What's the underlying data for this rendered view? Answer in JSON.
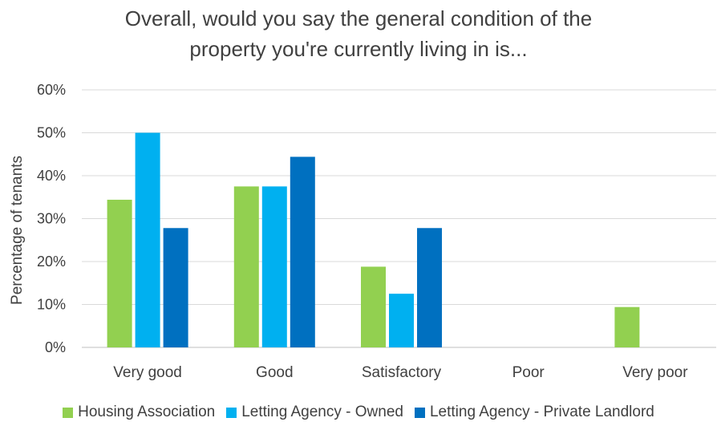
{
  "chart_data": {
    "type": "bar",
    "title_lines": [
      "Overall, would you say the general condition of the",
      "property you're currently living in is..."
    ],
    "ylabel": "Percentage of tenants",
    "xlabel": "",
    "ylim": [
      0,
      60
    ],
    "yticks": [
      "0%",
      "10%",
      "20%",
      "30%",
      "40%",
      "50%",
      "60%"
    ],
    "yticks_values": [
      0,
      10,
      20,
      30,
      40,
      50,
      60
    ],
    "grid": true,
    "legend_position": "bottom",
    "categories": [
      "Very good",
      "Good",
      "Satisfactory",
      "Poor",
      "Very poor"
    ],
    "series": [
      {
        "name": "Housing Association",
        "color": "#92d050",
        "values": [
          34.4,
          37.5,
          18.8,
          0,
          9.4
        ]
      },
      {
        "name": "Letting Agency - Owned",
        "color": "#00b0f0",
        "values": [
          50,
          37.5,
          12.5,
          0,
          0
        ]
      },
      {
        "name": "Letting Agency - Private Landlord",
        "color": "#0070c0",
        "values": [
          27.8,
          44.4,
          27.8,
          0,
          0
        ]
      }
    ]
  }
}
